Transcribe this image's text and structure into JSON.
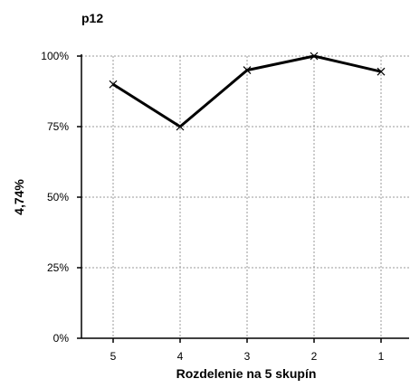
{
  "chart_data": {
    "type": "line",
    "title": "p12",
    "xlabel": "Rozdelenie na 5 skupín",
    "ylabel": "4,74%",
    "categories": [
      "5",
      "4",
      "3",
      "2",
      "1"
    ],
    "series": [
      {
        "values": [
          90,
          75,
          95,
          100,
          94.5
        ]
      }
    ],
    "ylim": [
      0,
      100
    ],
    "yticks": [
      0,
      25,
      50,
      75,
      100
    ],
    "ytick_labels": [
      "0%",
      "25%",
      "50%",
      "75%",
      "100%"
    ],
    "grid": true,
    "legend": "none",
    "line_color": "#000000",
    "marker": "x"
  }
}
